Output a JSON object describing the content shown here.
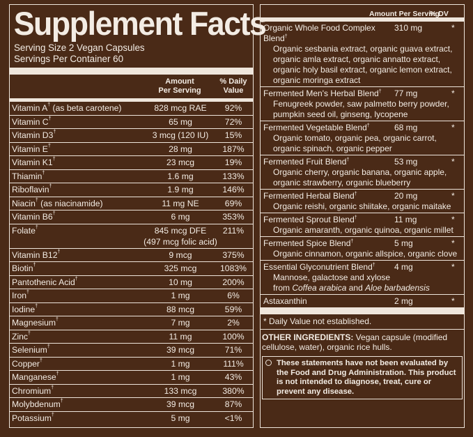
{
  "title": "Supplement Facts",
  "serving_size": "Serving Size 2 Vegan Capsules",
  "servings_per_container": "Servings Per Container 60",
  "left_headers": {
    "amount": "Amount\nPer Serving",
    "dv": "% Daily\nValue"
  },
  "dagger": "†",
  "nutrients": [
    {
      "name": "Vitamin A",
      "note": " (as beta carotene)",
      "amount": "828 mcg RAE",
      "dv": "92%"
    },
    {
      "name": "Vitamin C",
      "note": "",
      "amount": "65 mg",
      "dv": "72%"
    },
    {
      "name": "Vitamin D3",
      "note": "",
      "amount": "3 mcg (120 IU)",
      "dv": "15%"
    },
    {
      "name": "Vitamin E",
      "note": "",
      "amount": "28 mg",
      "dv": "187%"
    },
    {
      "name": "Vitamin K1",
      "note": "",
      "amount": "23 mcg",
      "dv": "19%"
    },
    {
      "name": "Thiamin",
      "note": "",
      "amount": "1.6 mg",
      "dv": "133%"
    },
    {
      "name": "Riboflavin",
      "note": "",
      "amount": "1.9 mg",
      "dv": "146%"
    },
    {
      "name": "Niacin",
      "note": " (as niacinamide)",
      "amount": "11 mg NE",
      "dv": "69%"
    },
    {
      "name": "Vitamin B6",
      "note": "",
      "amount": "6 mg",
      "dv": "353%"
    },
    {
      "name": "Folate",
      "note": "",
      "amount": "845 mcg DFE",
      "amount2": "(497 mcg folic acid)",
      "dv": "211%"
    },
    {
      "name": "Vitamin B12",
      "note": "",
      "amount": "9 mcg",
      "dv": "375%"
    },
    {
      "name": "Biotin",
      "note": "",
      "amount": "325 mcg",
      "dv": "1083%"
    },
    {
      "name": "Pantothenic Acid",
      "note": "",
      "amount": "10 mg",
      "dv": "200%"
    },
    {
      "name": "Iron",
      "note": "",
      "amount": "1 mg",
      "dv": "6%"
    },
    {
      "name": "Iodine",
      "note": "",
      "amount": "88 mcg",
      "dv": "59%"
    },
    {
      "name": "Magnesium",
      "note": "",
      "amount": "7 mg",
      "dv": "2%"
    },
    {
      "name": "Zinc",
      "note": "",
      "amount": "11 mg",
      "dv": "100%"
    },
    {
      "name": "Selenium",
      "note": "",
      "amount": "39 mcg",
      "dv": "71%"
    },
    {
      "name": "Copper",
      "note": "",
      "amount": "1 mg",
      "dv": "111%"
    },
    {
      "name": "Manganese",
      "note": "",
      "amount": "1 mg",
      "dv": "43%"
    },
    {
      "name": "Chromium",
      "note": "",
      "amount": "133 mcg",
      "dv": "380%"
    },
    {
      "name": "Molybdenum",
      "note": "",
      "amount": "39 mcg",
      "dv": "87%"
    },
    {
      "name": "Potassium",
      "note": "",
      "amount": "5 mg",
      "dv": "<1%"
    }
  ],
  "right_headers": {
    "amount": "Amount Per Serving",
    "dv": "% DV"
  },
  "blends": [
    {
      "name": "Organic Whole Food Complex Blend",
      "dagger": true,
      "amount": "310 mg",
      "star": "*",
      "ingredients": "Organic sesbania extract, organic guava extract, organic amla extract, organic annatto extract, organic holy basil extract, organic lemon extract, organic moringa extract"
    },
    {
      "name": "Fermented Men's Herbal Blend",
      "dagger": true,
      "amount": "77 mg",
      "star": "*",
      "ingredients": "Fenugreek powder, saw palmetto berry powder, pumpkin seed oil, ginseng, lycopene"
    },
    {
      "name": "Fermented Vegetable Blend",
      "dagger": true,
      "amount": "68 mg",
      "star": "*",
      "ingredients": "Organic tomato, organic pea, organic carrot, organic spinach, organic pepper"
    },
    {
      "name": "Fermented Fruit Blend",
      "dagger": true,
      "amount": "53 mg",
      "star": "*",
      "ingredients": "Organic cherry, organic banana, organic apple, organic strawberry, organic blueberry"
    },
    {
      "name": "Fermented Herbal Blend",
      "dagger": true,
      "amount": "20 mg",
      "star": "*",
      "ingredients": "Organic reishi, organic shiitake, organic maitake"
    },
    {
      "name": "Fermented Sprout Blend",
      "dagger": true,
      "amount": "11 mg",
      "star": "*",
      "ingredients": "Organic amaranth, organic quinoa, organic millet"
    },
    {
      "name": "Fermented Spice Blend",
      "dagger": true,
      "amount": "5 mg",
      "star": "*",
      "ingredients": "Organic cinnamon, organic allspice, organic clove"
    },
    {
      "name": "Essential Glyconutrient Blend",
      "dagger": true,
      "amount": "4 mg",
      "star": "*",
      "ingredients": "Mannose, galactose and xylose",
      "ingredients2_prefix": "from ",
      "ingredients2_italic1": "Coffea arabica",
      "ingredients2_mid": " and ",
      "ingredients2_italic2": "Aloe barbadensis"
    },
    {
      "name": "Astaxanthin",
      "dagger": false,
      "amount": "2 mg",
      "star": "*",
      "ingredients": ""
    }
  ],
  "dv_note": "* Daily Value not established.",
  "other_label": "OTHER INGREDIENTS:",
  "other_text": " Vegan capsule (modified cellulose, water), organic rice hulls.",
  "disclaimer": "These statements have not been evaluated by the Food and Drug Administration. This product is not intended to diagnose, treat, cure or prevent any disease.",
  "colors": {
    "background": "#4a2a17",
    "foreground": "#f3ece4"
  }
}
